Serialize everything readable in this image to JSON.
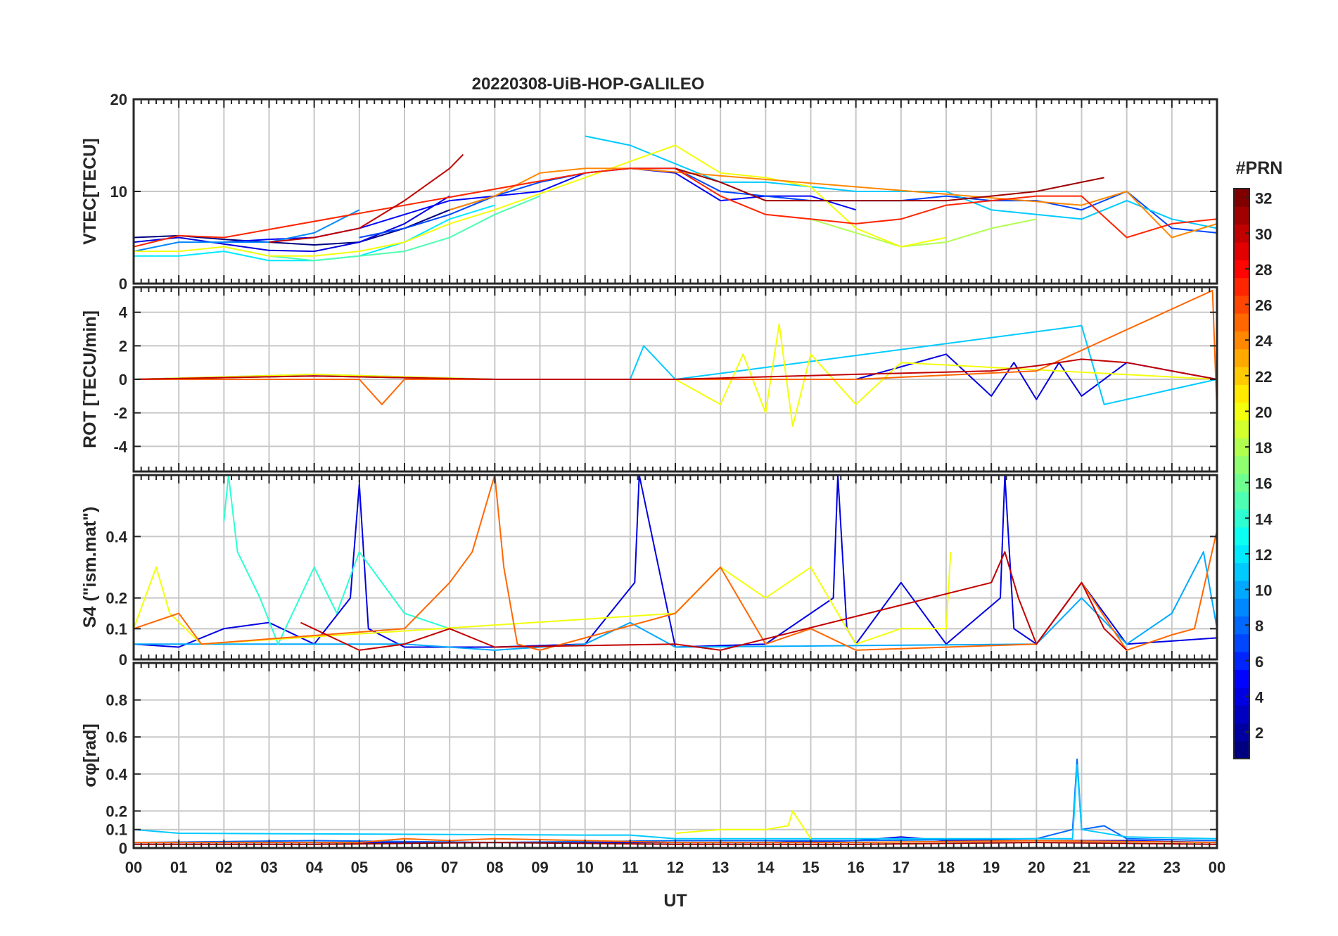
{
  "chart_data": {
    "type": "line",
    "title": "20220308-UiB-HOP-GALILEO",
    "xlabel": "UT",
    "x_tick_labels": [
      "00",
      "01",
      "02",
      "03",
      "04",
      "05",
      "06",
      "07",
      "08",
      "09",
      "10",
      "11",
      "12",
      "13",
      "14",
      "15",
      "16",
      "17",
      "18",
      "19",
      "20",
      "21",
      "22",
      "23",
      "00"
    ],
    "xlim_hours": [
      0,
      24
    ],
    "grid": true,
    "colorbar": {
      "title": "#PRN",
      "range": [
        1,
        32
      ],
      "tick_labels": [
        "2",
        "4",
        "6",
        "8",
        "10",
        "12",
        "14",
        "16",
        "18",
        "20",
        "22",
        "24",
        "26",
        "28",
        "30",
        "32"
      ],
      "colormap": "jet",
      "placement": "right"
    },
    "panels": [
      {
        "id": "vtec",
        "ylabel": "VTEC[TECU]",
        "ylim": [
          0,
          20
        ],
        "y_ticks": [
          0,
          10,
          20
        ],
        "series": [
          {
            "prn": 1,
            "x": [
              0,
              1,
              2,
              3,
              4,
              5,
              6,
              7,
              8
            ],
            "y": [
              5,
              5.2,
              4.8,
              4.5,
              4.2,
              4.5,
              6,
              8,
              9.5
            ]
          },
          {
            "prn": 4,
            "x": [
              0,
              1,
              2,
              3,
              4,
              5,
              6,
              7
            ],
            "y": [
              4.5,
              5,
              4.3,
              3.6,
              3.5,
              4.5,
              6.5,
              9.5
            ]
          },
          {
            "prn": 5,
            "x": [
              2,
              3,
              4,
              5,
              6,
              7,
              8,
              9,
              10,
              11,
              12,
              13,
              14,
              15,
              16
            ],
            "y": [
              4.5,
              4.8,
              5,
              6,
              7.5,
              9,
              9.5,
              10,
              12,
              12.5,
              12,
              9,
              9.5,
              9.5,
              8
            ]
          },
          {
            "prn": 7,
            "x": [
              5,
              6,
              7,
              8,
              9,
              10,
              11,
              12,
              13,
              14,
              15,
              16,
              17,
              18,
              19,
              20,
              21,
              22,
              23,
              24
            ],
            "y": [
              5,
              6,
              7.5,
              9.5,
              11,
              12,
              12.5,
              12.5,
              10,
              9.5,
              9,
              9,
              9,
              9.5,
              9,
              9,
              8,
              10,
              6,
              5.5
            ]
          },
          {
            "prn": 9,
            "x": [
              0,
              1,
              2,
              3,
              4,
              5
            ],
            "y": [
              3.5,
              4.5,
              4.5,
              4.5,
              5.5,
              8
            ]
          },
          {
            "prn": 11,
            "x": [
              10,
              11,
              12,
              13,
              14,
              15,
              16,
              17,
              18,
              19,
              20,
              21,
              22,
              23,
              24
            ],
            "y": [
              16,
              15,
              13,
              11,
              11,
              10.5,
              10,
              10,
              10,
              8,
              7.5,
              7,
              9,
              7,
              6
            ]
          },
          {
            "prn": 12,
            "x": [
              0,
              1,
              2,
              3,
              4,
              5,
              6,
              7,
              8
            ],
            "y": [
              3,
              3,
              3.5,
              2.5,
              2.5,
              3,
              4.5,
              7,
              8.5
            ]
          },
          {
            "prn": 15,
            "x": [
              2,
              3,
              4,
              5,
              6,
              7,
              8,
              9
            ],
            "y": [
              4,
              3,
              2.5,
              3,
              3.5,
              5,
              7.5,
              9.5
            ]
          },
          {
            "prn": 18,
            "x": [
              15,
              16,
              17,
              18,
              19,
              20
            ],
            "y": [
              7,
              5.5,
              4,
              4.5,
              6,
              7
            ]
          },
          {
            "prn": 20,
            "x": [
              0,
              1,
              2,
              3,
              4,
              5,
              6,
              7,
              8,
              12,
              13,
              14,
              15,
              16,
              17,
              18
            ],
            "y": [
              3.5,
              3.5,
              4,
              3,
              3,
              3.5,
              4.5,
              6.5,
              8,
              15,
              12,
              11.5,
              10.5,
              6,
              4,
              5
            ]
          },
          {
            "prn": 24,
            "x": [
              7,
              8,
              9,
              10,
              11,
              21,
              22,
              23,
              24
            ],
            "y": [
              8,
              9.5,
              12,
              12.5,
              12.5,
              8.5,
              10,
              5,
              6.5
            ]
          },
          {
            "prn": 27,
            "x": [
              0,
              1,
              2,
              10,
              11,
              12,
              13,
              14,
              15,
              16,
              17,
              18,
              19,
              20,
              21,
              22,
              23,
              24
            ],
            "y": [
              4,
              5.2,
              5,
              12,
              12.5,
              12.5,
              9.5,
              7.5,
              7,
              6.5,
              7,
              8.5,
              9,
              9.5,
              9.5,
              5,
              6.5,
              7
            ]
          },
          {
            "prn": 30,
            "x": [
              3,
              4,
              5,
              6,
              7,
              7.3
            ],
            "y": [
              4.5,
              5,
              6,
              9,
              12.5,
              14
            ]
          },
          {
            "prn": 31,
            "x": [
              12,
              13,
              14,
              15,
              16,
              17,
              18,
              19,
              20,
              21,
              21.5
            ],
            "y": [
              12.5,
              11,
              9,
              9,
              9,
              9,
              9,
              9.5,
              10,
              11,
              11.5
            ]
          }
        ]
      },
      {
        "id": "rot",
        "ylabel": "ROT [TECU/min]",
        "ylim": [
          -5.5,
          5.5
        ],
        "y_ticks": [
          -4,
          -2,
          0,
          2,
          4
        ],
        "series": [
          {
            "prn": 4,
            "x": [
              0,
              4,
              8,
              12,
              16,
              18,
              19,
              19.5,
              20,
              20.5,
              21,
              22,
              24
            ],
            "y": [
              0,
              0.2,
              0,
              0,
              0,
              1.5,
              -1,
              1,
              -1.2,
              1,
              -1,
              1,
              0
            ]
          },
          {
            "prn": 11,
            "x": [
              0,
              4,
              8,
              11,
              11.3,
              12,
              21,
              21.5,
              24
            ],
            "y": [
              0,
              0.3,
              0,
              0,
              2,
              0,
              3.2,
              -1.5,
              0
            ]
          },
          {
            "prn": 20,
            "x": [
              0,
              4,
              8,
              12,
              13,
              13.5,
              14,
              14.3,
              14.6,
              15,
              16,
              17,
              24
            ],
            "y": [
              0,
              0.3,
              0,
              0,
              -1.5,
              1.5,
              -2,
              3.3,
              -2.8,
              1.5,
              -1.5,
              1,
              0
            ]
          },
          {
            "prn": 25,
            "x": [
              0,
              5,
              5.5,
              6,
              8,
              12,
              16,
              20,
              23.9,
              24
            ],
            "y": [
              0,
              0,
              -1.5,
              0,
              0,
              0,
              0,
              0.5,
              5.3,
              -2
            ]
          },
          {
            "prn": 30,
            "x": [
              0,
              4,
              8,
              12,
              16,
              19,
              20,
              21,
              22,
              24
            ],
            "y": [
              0,
              0.2,
              0,
              0,
              0.3,
              0.5,
              0.8,
              1.2,
              1,
              0
            ]
          }
        ]
      },
      {
        "id": "s4",
        "ylabel": "S4 (\"ism.mat\")",
        "ylim": [
          0,
          0.6
        ],
        "y_ticks": [
          0,
          0.1,
          0.2,
          0.4
        ],
        "y_tick_labels": [
          "0",
          "0.1",
          "0.2",
          "0.4"
        ],
        "series": [
          {
            "prn": 4,
            "x": [
              0,
              1,
              2,
              3,
              4,
              4.8,
              5,
              5.2,
              6,
              8,
              10,
              11.1,
              11.2,
              12,
              14,
              15.5,
              15.6,
              15.8,
              16,
              17,
              18,
              19.2,
              19.3,
              19.5,
              20,
              21,
              22,
              24
            ],
            "y": [
              0.05,
              0.04,
              0.1,
              0.12,
              0.05,
              0.2,
              0.57,
              0.1,
              0.04,
              0.04,
              0.05,
              0.25,
              0.6,
              0.04,
              0.05,
              0.2,
              0.6,
              0.1,
              0.05,
              0.25,
              0.05,
              0.2,
              0.6,
              0.1,
              0.05,
              0.25,
              0.05,
              0.07
            ]
          },
          {
            "prn": 10,
            "x": [
              0,
              4,
              5,
              6,
              8,
              10,
              11,
              12,
              20,
              21,
              22,
              23,
              23.7,
              24
            ],
            "y": [
              0.05,
              0.05,
              0.05,
              0.05,
              0.03,
              0.05,
              0.12,
              0.04,
              0.05,
              0.2,
              0.05,
              0.15,
              0.35,
              0.1
            ]
          },
          {
            "prn": 14,
            "x": [
              2,
              2.1,
              2.3,
              2.8,
              3.2,
              4,
              4.5,
              5,
              6,
              7
            ],
            "y": [
              0.45,
              0.6,
              0.35,
              0.2,
              0.05,
              0.3,
              0.15,
              0.35,
              0.15,
              0.1
            ]
          },
          {
            "prn": 20,
            "x": [
              0,
              0.5,
              0.8,
              1.5,
              12,
              13,
              14,
              15,
              16,
              17,
              18,
              18.1
            ],
            "y": [
              0.1,
              0.3,
              0.15,
              0.05,
              0.15,
              0.3,
              0.2,
              0.3,
              0.05,
              0.1,
              0.1,
              0.35
            ]
          },
          {
            "prn": 25,
            "x": [
              0,
              1,
              1.5,
              6,
              7,
              7.5,
              8,
              8.2,
              8.5,
              9,
              12,
              13,
              14,
              15,
              16,
              20,
              21,
              22,
              23,
              23.5,
              24
            ],
            "y": [
              0.1,
              0.15,
              0.05,
              0.1,
              0.25,
              0.35,
              0.6,
              0.3,
              0.05,
              0.03,
              0.15,
              0.3,
              0.05,
              0.1,
              0.03,
              0.05,
              0.25,
              0.03,
              0.08,
              0.1,
              0.42
            ]
          },
          {
            "prn": 30,
            "x": [
              3.7,
              5,
              6,
              7,
              8,
              12,
              13,
              19,
              19.3,
              19.6,
              20,
              21,
              21.5,
              22
            ],
            "y": [
              0.12,
              0.03,
              0.05,
              0.1,
              0.04,
              0.05,
              0.03,
              0.25,
              0.35,
              0.2,
              0.05,
              0.25,
              0.1,
              0.03
            ]
          }
        ]
      },
      {
        "id": "sigma",
        "ylabel": "σφ[rad]",
        "ylim": [
          0,
          1
        ],
        "y_ticks": [
          0,
          0.1,
          0.2,
          0.4,
          0.6,
          0.8
        ],
        "y_tick_labels": [
          "0",
          "0.1",
          "0.2",
          "0.4",
          "0.6",
          "0.8"
        ],
        "series": [
          {
            "prn": 4,
            "x": [
              0,
              2,
              4,
              6,
              8,
              10,
              12,
              14,
              16,
              17,
              18,
              20,
              22,
              24
            ],
            "y": [
              0.03,
              0.03,
              0.03,
              0.03,
              0.03,
              0.03,
              0.03,
              0.03,
              0.04,
              0.06,
              0.04,
              0.04,
              0.04,
              0.03
            ]
          },
          {
            "prn": 8,
            "x": [
              0,
              4,
              8,
              12,
              16,
              20,
              20.8,
              20.9,
              21,
              21.5,
              22,
              24
            ],
            "y": [
              0.03,
              0.04,
              0.03,
              0.04,
              0.04,
              0.05,
              0.1,
              0.48,
              0.1,
              0.12,
              0.05,
              0.04
            ]
          },
          {
            "prn": 11,
            "x": [
              0,
              1,
              10,
              11,
              12,
              20.8,
              20.9,
              21,
              22,
              24
            ],
            "y": [
              0.1,
              0.08,
              0.07,
              0.07,
              0.05,
              0.05,
              0.45,
              0.1,
              0.06,
              0.05
            ]
          },
          {
            "prn": 20,
            "x": [
              12,
              13,
              14,
              14.5,
              14.6,
              15
            ],
            "y": [
              0.08,
              0.1,
              0.1,
              0.12,
              0.2,
              0.05
            ]
          },
          {
            "prn": 25,
            "x": [
              0,
              5,
              6,
              7,
              8,
              12,
              16,
              20,
              24
            ],
            "y": [
              0.03,
              0.03,
              0.05,
              0.04,
              0.05,
              0.03,
              0.03,
              0.04,
              0.03
            ]
          },
          {
            "prn": 31,
            "x": [
              0,
              4,
              8,
              12,
              16,
              20,
              24
            ],
            "y": [
              0.02,
              0.02,
              0.03,
              0.02,
              0.02,
              0.03,
              0.02
            ]
          }
        ]
      }
    ]
  }
}
